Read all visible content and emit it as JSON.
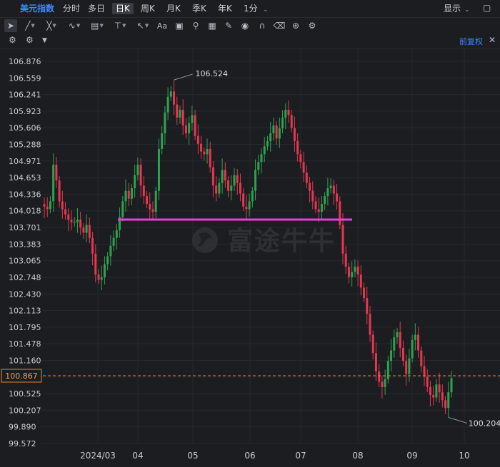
{
  "topbar": {
    "title": "美元指数",
    "intervals": [
      "分时",
      "多日",
      "日K",
      "周K",
      "月K",
      "季K",
      "年K",
      "1分"
    ],
    "active_interval": "日K",
    "display_label": "显示"
  },
  "toolbar": {
    "tools": [
      "cursor",
      "line",
      "ray",
      "polyline",
      "fib",
      "level",
      "arrow",
      "text",
      "comment",
      "zoom",
      "measure",
      "brush",
      "eye",
      "magnet",
      "trash",
      "sync",
      "settings"
    ],
    "text_tool_label": "Aa"
  },
  "subbar": {
    "adjust_label": "前复权"
  },
  "chart_data": {
    "type": "candlestick",
    "y_ticks": [
      "106.876",
      "106.559",
      "106.241",
      "105.923",
      "105.606",
      "105.288",
      "104.971",
      "104.653",
      "104.336",
      "104.018",
      "103.701",
      "103.383",
      "103.065",
      "102.748",
      "102.430",
      "102.113",
      "101.795",
      "101.478",
      "101.160",
      "100.843",
      "100.525",
      "100.207",
      "99.890",
      "99.572"
    ],
    "x_ticks": [
      "2024/03",
      "04",
      "05",
      "06",
      "07",
      "08",
      "09",
      "10"
    ],
    "ylim": [
      99.572,
      106.876
    ],
    "high_label": "106.524",
    "low_label": "100.204",
    "current_price": "100.867",
    "current_value": 100.867,
    "support_line_value": 103.85,
    "colors": {
      "up": "#2fa24f",
      "down": "#e5374f",
      "support": "#e83ee0",
      "current": "#e8892a"
    },
    "watermark": "富途牛牛",
    "closes": [
      104.1,
      104.05,
      104.2,
      104.9,
      104.6,
      104.2,
      104.05,
      103.95,
      103.85,
      103.8,
      103.8,
      103.85,
      103.7,
      103.6,
      103.75,
      103.5,
      103.2,
      102.8,
      102.7,
      102.75,
      103.0,
      103.15,
      103.35,
      103.5,
      103.65,
      103.9,
      104.2,
      104.4,
      104.25,
      104.45,
      104.7,
      104.9,
      104.5,
      104.3,
      104.15,
      104.05,
      104.0,
      104.4,
      105.2,
      105.5,
      105.9,
      106.2,
      106.3,
      106.05,
      105.8,
      105.95,
      105.65,
      105.5,
      105.7,
      105.85,
      105.45,
      105.3,
      105.15,
      105.1,
      105.2,
      104.85,
      104.5,
      104.35,
      104.55,
      104.8,
      104.6,
      104.4,
      104.5,
      104.7,
      104.55,
      104.35,
      104.1,
      104.05,
      104.2,
      104.4,
      104.8,
      104.95,
      105.1,
      105.25,
      105.35,
      105.5,
      105.65,
      105.4,
      105.6,
      105.8,
      105.95,
      105.85,
      105.6,
      105.35,
      105.1,
      104.95,
      104.75,
      104.55,
      104.4,
      104.2,
      104.05,
      104.0,
      104.15,
      104.3,
      104.45,
      104.5,
      104.35,
      104.2,
      103.75,
      103.2,
      102.95,
      102.75,
      102.85,
      102.95,
      102.8,
      102.55,
      102.35,
      102.05,
      101.65,
      101.3,
      100.95,
      100.75,
      100.65,
      100.8,
      101.15,
      101.35,
      101.6,
      101.7,
      101.4,
      101.15,
      100.9,
      101.2,
      101.55,
      101.65,
      101.35,
      101.05,
      100.85,
      100.65,
      100.5,
      100.45,
      100.7,
      100.55,
      100.4,
      100.25,
      100.55,
      100.82
    ]
  }
}
